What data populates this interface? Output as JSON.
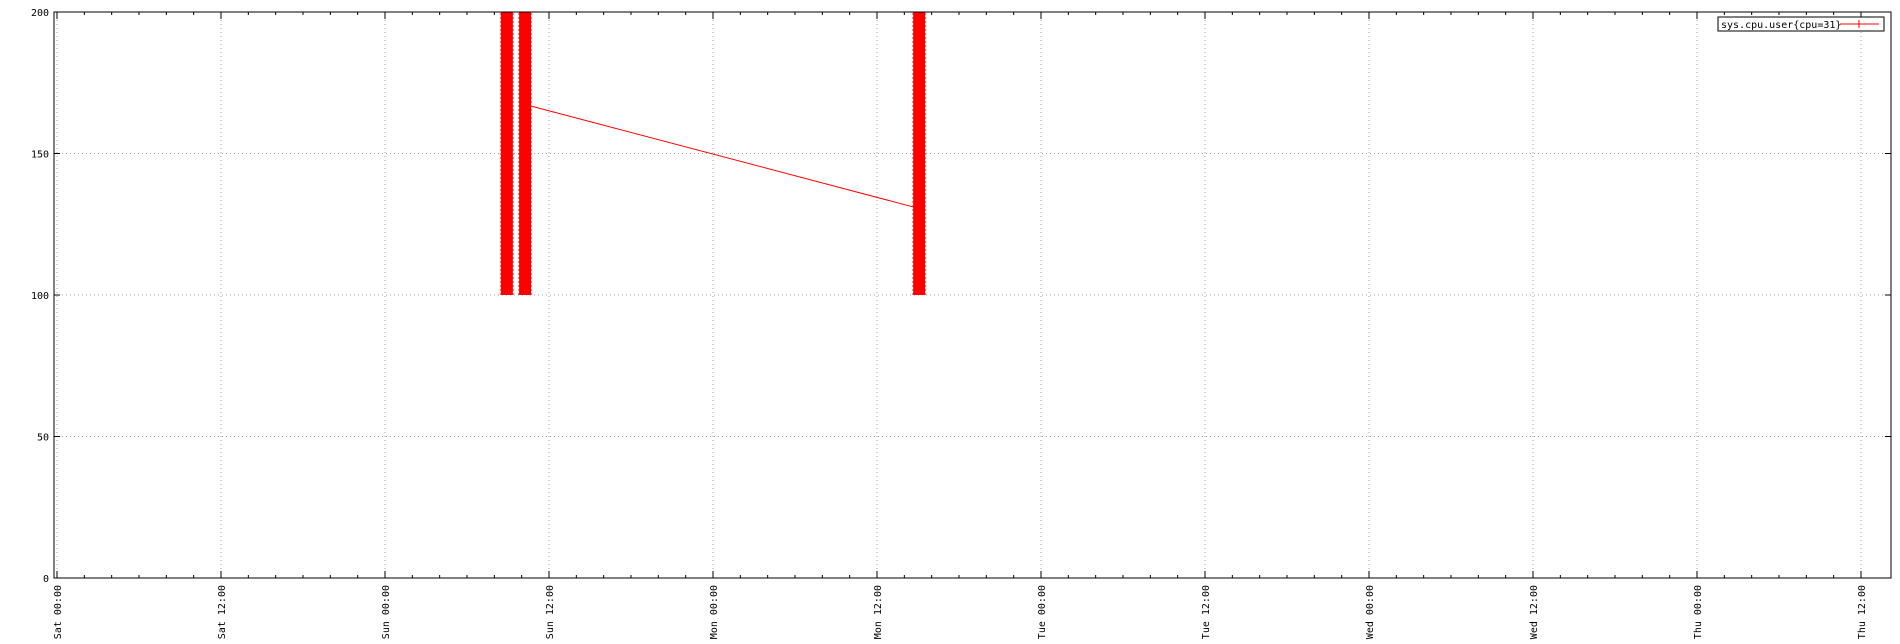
{
  "chart_data": {
    "type": "line",
    "title": "",
    "xlabel": "",
    "ylabel": "",
    "grid": true,
    "legend_position": "top-right",
    "xlim": [
      "Sat 00:00",
      "Thu 12:00"
    ],
    "ylim": [
      0,
      200
    ],
    "x_tick_labels": [
      "Sat 00:00",
      "Sat 12:00",
      "Sun 00:00",
      "Sun 12:00",
      "Mon 00:00",
      "Mon 12:00",
      "Tue 00:00",
      "Tue 12:00",
      "Wed 00:00",
      "Wed 12:00",
      "Thu 00:00",
      "Thu 12:00"
    ],
    "y_tick_labels": [
      "0",
      "50",
      "100",
      "150",
      "200"
    ],
    "series": [
      {
        "name": "sys.cpu.user{cpu=31}",
        "color": "#ff0000",
        "marker": "plus",
        "bursts": [
          {
            "x": "Sun 08:55",
            "y_min": 100,
            "y_max": 200
          },
          {
            "x": "Sun 10:15",
            "y_min": 100,
            "y_max": 200
          },
          {
            "x": "Mon 15:05",
            "y_min": 100,
            "y_max": 200
          }
        ],
        "line": [
          {
            "x": "Sun 10:30",
            "y": 167
          },
          {
            "x": "Mon 14:45",
            "y": 131
          }
        ]
      }
    ]
  }
}
